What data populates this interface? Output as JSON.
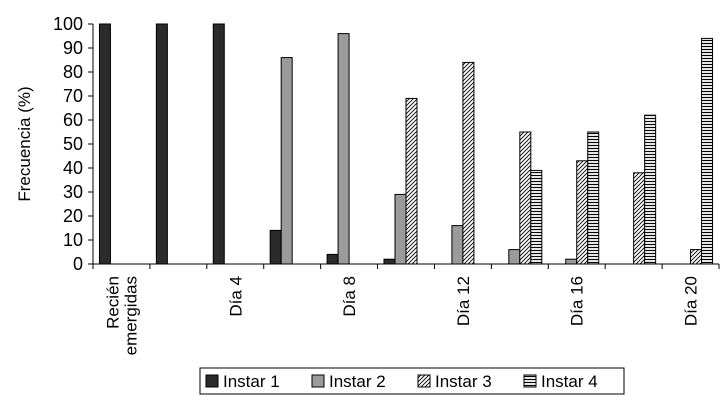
{
  "chart_data": {
    "type": "bar",
    "title": "",
    "xlabel": "",
    "ylabel": "Frecuencia (%)",
    "ylim": [
      0,
      100
    ],
    "yticks": [
      0,
      10,
      20,
      30,
      40,
      50,
      60,
      70,
      80,
      90,
      100
    ],
    "categories": [
      "Recién emergidas",
      "",
      "Día 4",
      "",
      "Día 8",
      "",
      "Día 12",
      "",
      "Día 16",
      "",
      "Día 20"
    ],
    "category_label_lines": [
      [
        "Recién",
        "emergidas"
      ],
      [],
      [
        "Día 4"
      ],
      [],
      [
        "Día 8"
      ],
      [],
      [
        "Día 12"
      ],
      [],
      [
        "Día 16"
      ],
      [],
      [
        "Día 20"
      ]
    ],
    "series": [
      {
        "name": "Instar 1",
        "values": [
          100,
          100,
          100,
          14,
          4,
          2,
          0,
          0,
          0,
          0,
          0
        ]
      },
      {
        "name": "Instar 2",
        "values": [
          0,
          0,
          0,
          86,
          96,
          29,
          16,
          6,
          2,
          0,
          0
        ]
      },
      {
        "name": "Instar 3",
        "values": [
          0,
          0,
          0,
          0,
          0,
          69,
          84,
          55,
          43,
          38,
          6
        ]
      },
      {
        "name": "Instar 4",
        "values": [
          0,
          0,
          0,
          0,
          0,
          0,
          0,
          39,
          55,
          62,
          94
        ]
      }
    ],
    "legend_position": "bottom",
    "grid": false
  }
}
